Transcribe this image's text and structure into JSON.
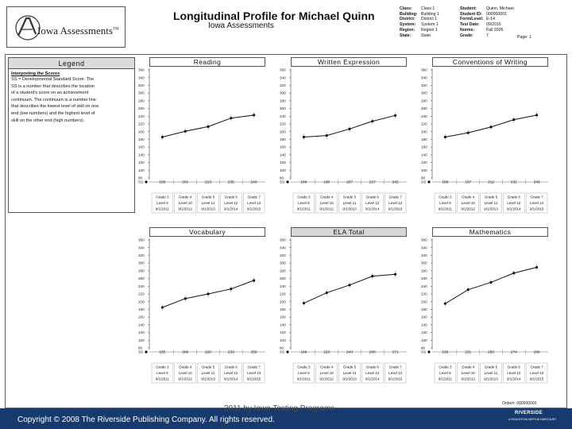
{
  "header": {
    "logo_text": "Iowa Assessments",
    "logo_tm": "TM",
    "title": "Longitudinal Profile for Michael Quinn",
    "subtitle": "Iowa Assessments",
    "info_left": [
      {
        "label": "Class:",
        "value": "Class 1"
      },
      {
        "label": "Building:",
        "value": "Building 1"
      },
      {
        "label": "District:",
        "value": "District 1"
      },
      {
        "label": "System:",
        "value": "System 1"
      },
      {
        "label": "Region:",
        "value": "Region 1"
      },
      {
        "label": "State:",
        "value": "State"
      }
    ],
    "info_right": [
      {
        "label": "Student:",
        "value": "Quinn, Michael"
      },
      {
        "label": "Student ID:",
        "value": "000000001"
      },
      {
        "label": "Form/Level:",
        "value": "E-14"
      },
      {
        "label": "Test Date:",
        "value": "09/2015"
      },
      {
        "label": "Norms:",
        "value": "Fall 2005"
      },
      {
        "label": "Grade:",
        "value": "7"
      }
    ],
    "page_label": "Page: 1"
  },
  "legend": {
    "heading": "Legend",
    "subheading": "Interpreting the Scores",
    "body": [
      "SS = Developmental Standard Score. The",
      "SS is a number that describes the location",
      "of a student's score on an achievement",
      "continuum. The continuum is a number line",
      "that describes the lowest level of skill on one",
      "end (low numbers) and the highest level of",
      "skill on the other end (high numbers)."
    ]
  },
  "chart_data": [
    {
      "type": "line",
      "title": "Reading",
      "ylim": [
        80,
        360
      ],
      "y_ticks": [
        80,
        100,
        120,
        140,
        160,
        180,
        200,
        220,
        240,
        260,
        280,
        300,
        320,
        340,
        360
      ],
      "categories": [
        "Grade 3",
        "Grade 4",
        "Grade 5",
        "Grade 6",
        "Grade 7"
      ],
      "levels": [
        "Level 9",
        "Level 10",
        "Level 11",
        "Level 12",
        "Level 13"
      ],
      "dates": [
        "9/1/2011",
        "9/1/2012",
        "9/1/2013",
        "9/1/2014",
        "9/1/2015"
      ],
      "row_label": "SS",
      "values": [
        186,
        201,
        213,
        235,
        243
      ],
      "value_labels": [
        "186",
        "201",
        "213",
        "235",
        "243"
      ]
    },
    {
      "type": "line",
      "title": "Written Expression",
      "ylim": [
        80,
        360
      ],
      "y_ticks": [
        80,
        100,
        120,
        140,
        160,
        180,
        200,
        220,
        240,
        260,
        280,
        300,
        320,
        340,
        360
      ],
      "categories": [
        "Grade 3",
        "Grade 4",
        "Grade 5",
        "Grade 6",
        "Grade 7"
      ],
      "levels": [
        "Level 9",
        "Level 10",
        "Level 11",
        "Level 12",
        "Level 13"
      ],
      "dates": [
        "9/1/2011",
        "9/1/2012",
        "9/1/2013",
        "9/1/2014",
        "9/1/2015"
      ],
      "row_label": "SS",
      "values": [
        186,
        190,
        207,
        227,
        242
      ],
      "value_labels": [
        "186",
        "190",
        "207",
        "227",
        "242"
      ]
    },
    {
      "type": "line",
      "title": "Conventions of Writing",
      "ylim": [
        80,
        360
      ],
      "y_ticks": [
        80,
        100,
        120,
        140,
        160,
        180,
        200,
        220,
        240,
        260,
        280,
        300,
        320,
        340,
        360
      ],
      "categories": [
        "Grade 3",
        "Grade 4",
        "Grade 5",
        "Grade 6",
        "Grade 7"
      ],
      "levels": [
        "Level 9",
        "Level 10",
        "Level 11",
        "Level 12",
        "Level 13"
      ],
      "dates": [
        "9/1/2011",
        "9/1/2012",
        "9/1/2013",
        "9/1/2014",
        "9/1/2015"
      ],
      "row_label": "SS",
      "values": [
        186,
        197,
        212,
        231,
        243
      ],
      "value_labels": [
        "186",
        "197",
        "212",
        "231",
        "243"
      ]
    },
    {
      "type": "line",
      "title": "Vocabulary",
      "ylim": [
        80,
        360
      ],
      "y_ticks": [
        80,
        100,
        120,
        140,
        160,
        180,
        200,
        220,
        240,
        260,
        280,
        300,
        320,
        340,
        360
      ],
      "categories": [
        "Grade 3",
        "Grade 4",
        "Grade 5",
        "Grade 6",
        "Grade 7"
      ],
      "levels": [
        "Level 9",
        "Level 10",
        "Level 11",
        "Level 12",
        "Level 13"
      ],
      "dates": [
        "9/1/2011",
        "9/1/2012",
        "9/1/2013",
        "9/1/2014",
        "9/1/2015"
      ],
      "row_label": "SS",
      "values": [
        185,
        208,
        220,
        233,
        255
      ],
      "value_labels": [
        "185",
        "208",
        "220",
        "233",
        "255"
      ]
    },
    {
      "type": "line",
      "title": "ELA Total",
      "shaded_title": true,
      "ylim": [
        80,
        360
      ],
      "y_ticks": [
        80,
        100,
        120,
        140,
        160,
        180,
        200,
        220,
        240,
        260,
        280,
        300,
        320,
        340,
        360
      ],
      "categories": [
        "Grade 3",
        "Grade 4",
        "Grade 5",
        "Grade 6",
        "Grade 7"
      ],
      "levels": [
        "Level 9",
        "Level 10",
        "Level 11",
        "Level 12",
        "Level 13"
      ],
      "dates": [
        "9/1/2011",
        "9/1/2012",
        "9/1/2013",
        "9/1/2014",
        "9/1/2015"
      ],
      "row_label": "SS",
      "values": [
        196,
        223,
        243,
        266,
        271
      ],
      "value_labels": [
        "196",
        "223",
        "243",
        "266",
        "271"
      ]
    },
    {
      "type": "line",
      "title": "Mathematics",
      "ylim": [
        80,
        360
      ],
      "y_ticks": [
        80,
        100,
        120,
        140,
        160,
        180,
        200,
        220,
        240,
        260,
        280,
        300,
        320,
        340,
        360
      ],
      "categories": [
        "Grade 3",
        "Grade 4",
        "Grade 5",
        "Grade 6",
        "Grade 7"
      ],
      "levels": [
        "Level 9",
        "Level 10",
        "Level 11",
        "Level 12",
        "Level 13"
      ],
      "dates": [
        "9/1/2011",
        "9/1/2012",
        "9/1/2013",
        "9/1/2014",
        "9/1/2015"
      ],
      "row_label": "SS",
      "values": [
        195,
        231,
        250,
        274,
        289
      ],
      "value_labels": [
        "195",
        "231",
        "250",
        "274",
        "289"
      ]
    }
  ],
  "footer": {
    "copyright": "Copyright © 2008 The Riverside Publishing Company. All rights reserved.",
    "watermark": "2011 by Iowa Testing Programs",
    "order_number": "Order#: 000000000",
    "publisher_name": "RIVERSIDE",
    "publisher_tagline": "A HOUGHTON MIFFLIN HARCOURT",
    "band_color": "#163a6e"
  }
}
